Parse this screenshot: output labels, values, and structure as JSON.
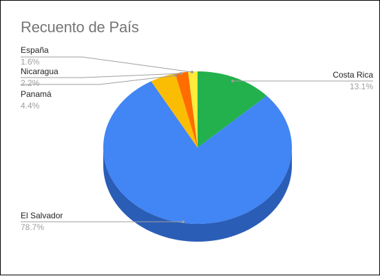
{
  "chart_data": {
    "type": "pie",
    "title": "Recuento de País",
    "style": "3d",
    "slices": [
      {
        "label": "Costa Rica",
        "percent_label": "13.1%",
        "value": 13.1,
        "color": "#22b14c"
      },
      {
        "label": "El Salvador",
        "percent_label": "78.7%",
        "value": 78.7,
        "color": "#4285f4"
      },
      {
        "label": "Panamá",
        "percent_label": "4.4%",
        "value": 4.4,
        "color": "#fbbc04"
      },
      {
        "label": "Nicaragua",
        "percent_label": "2.2%",
        "value": 2.2,
        "color": "#ff6d01"
      },
      {
        "label": "España",
        "percent_label": "1.6%",
        "value": 1.6,
        "color": "#ffeb3b"
      }
    ],
    "side_colors": {
      "Costa Rica": "#178a3a",
      "El Salvador": "#2a5db5",
      "Panamá": "#c99500",
      "Nicaragua": "#c75400",
      "España": "#c9b800"
    },
    "legend": "callout-labels"
  }
}
